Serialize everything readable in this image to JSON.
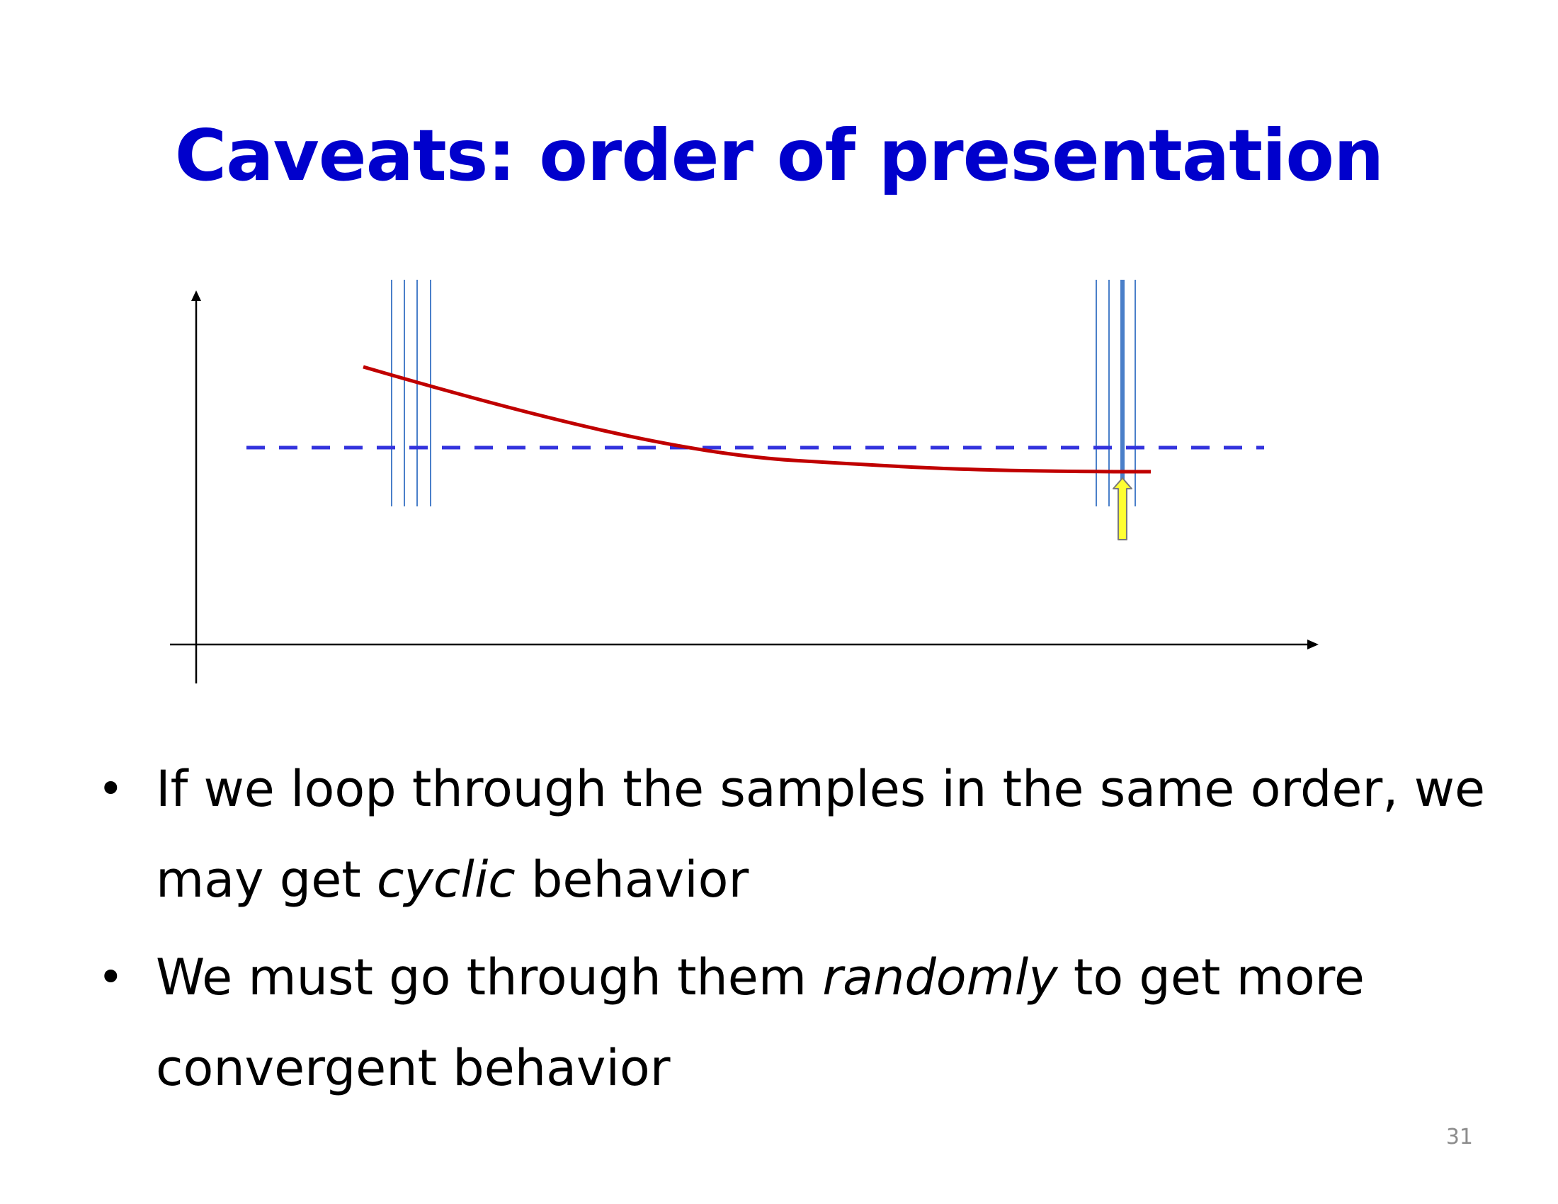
{
  "slide": {
    "title": "Caveats: order of presentation",
    "page_number": "31"
  },
  "bullets": [
    {
      "parts": [
        "If we loop through the samples in the same order, we may get ",
        "cyclic",
        " behavior"
      ]
    },
    {
      "parts": [
        "We must go through them ",
        "randomly",
        " to get more convergent behavior"
      ]
    }
  ],
  "colors": {
    "title": "#0000cc",
    "axis": "#000000",
    "curve": "#c00000",
    "dashed_line": "#3333dd",
    "sample_lines": "#4a7fc9",
    "pointer_arrow_fill": "#ffff33",
    "pointer_arrow_stroke": "#7a7a7a",
    "text": "#000000",
    "page_number": "#8c8c8c"
  },
  "diagram": {
    "icons": [
      "y-axis-arrow-icon",
      "x-axis-arrow-icon",
      "pointer-up-arrow-icon"
    ]
  }
}
